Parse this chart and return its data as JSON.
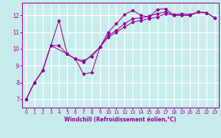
{
  "xlabel": "Windchill (Refroidissement éolien,°C)",
  "background_color": "#c8ecec",
  "grid_color": "#ffffff",
  "line_color": "#990099",
  "xlim": [
    -0.5,
    23.5
  ],
  "ylim": [
    6.5,
    12.75
  ],
  "xticks": [
    0,
    1,
    2,
    3,
    4,
    5,
    6,
    7,
    8,
    9,
    10,
    11,
    12,
    13,
    14,
    15,
    16,
    17,
    18,
    19,
    20,
    21,
    22,
    23
  ],
  "yticks": [
    7,
    8,
    9,
    10,
    11,
    12
  ],
  "series1_x": [
    0,
    1,
    2,
    3,
    4,
    5,
    6,
    7,
    8,
    9,
    10,
    11,
    12,
    13,
    14,
    15,
    16,
    17,
    18,
    19,
    20,
    21,
    22,
    23
  ],
  "series1_y": [
    7.0,
    8.0,
    8.7,
    10.2,
    11.7,
    9.7,
    9.4,
    9.3,
    9.55,
    10.1,
    11.0,
    11.5,
    12.05,
    12.3,
    12.0,
    11.9,
    12.35,
    12.4,
    12.0,
    12.0,
    12.0,
    12.2,
    12.15,
    11.85
  ],
  "series2_x": [
    0,
    1,
    2,
    3,
    4,
    5,
    6,
    7,
    8,
    9,
    10,
    11,
    12,
    13,
    14,
    15,
    16,
    17,
    18,
    19,
    20,
    21,
    22,
    23
  ],
  "series2_y": [
    7.0,
    8.0,
    8.7,
    10.2,
    10.2,
    9.7,
    9.4,
    8.5,
    8.6,
    10.1,
    10.7,
    11.0,
    11.3,
    11.6,
    11.7,
    11.8,
    11.9,
    12.1,
    12.0,
    12.0,
    12.0,
    12.2,
    12.15,
    11.85
  ],
  "series3_x": [
    0,
    1,
    2,
    3,
    5,
    6,
    7,
    9,
    10,
    11,
    12,
    13,
    14,
    15,
    16,
    17,
    18,
    19,
    20,
    21,
    22,
    23
  ],
  "series3_y": [
    7.0,
    8.0,
    8.7,
    10.2,
    9.7,
    9.4,
    9.2,
    10.1,
    10.8,
    11.1,
    11.5,
    11.8,
    11.85,
    11.95,
    12.1,
    12.2,
    12.05,
    12.1,
    12.05,
    12.2,
    12.15,
    11.85
  ],
  "tick_fontsize": 5.0,
  "xlabel_fontsize": 5.5,
  "marker_size": 2.0,
  "line_width": 0.8
}
